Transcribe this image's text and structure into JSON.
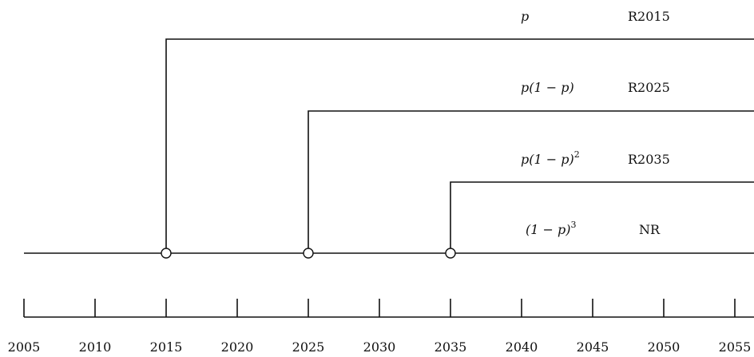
{
  "axis": {
    "ticks": [
      "2005",
      "2010",
      "2015",
      "2020",
      "2025",
      "2030",
      "2035",
      "2040",
      "2045",
      "2050",
      "2055"
    ]
  },
  "branches": [
    {
      "start_year": 2015,
      "probability": "p",
      "label": "R2015"
    },
    {
      "start_year": 2025,
      "probability": "p(1 − p)",
      "label": "R2025"
    },
    {
      "start_year": 2035,
      "probability": "p(1 − p)",
      "exponent": "2",
      "label": "R2035"
    }
  ],
  "main_line": {
    "probability": "(1 − p)",
    "exponent": "3",
    "label": "NR"
  }
}
